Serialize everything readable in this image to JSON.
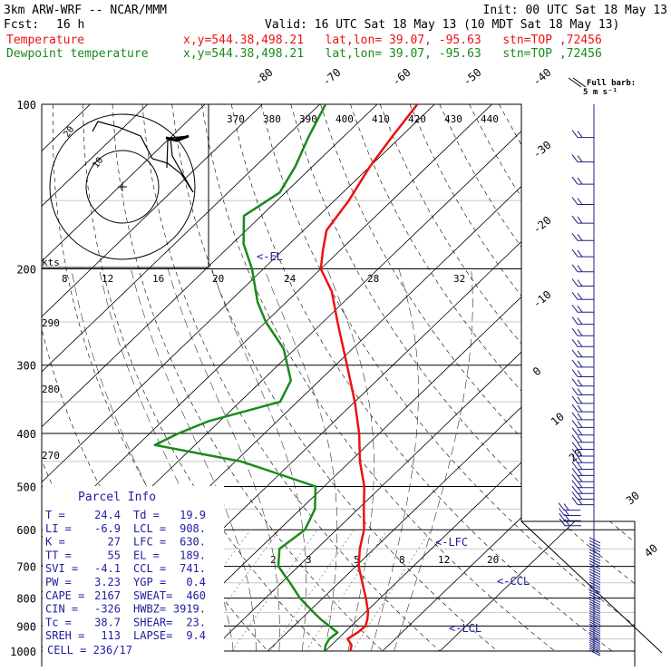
{
  "header": {
    "model": "3km ARW-WRF -- NCAR/MMM",
    "init": "Init: 00 UTC Sat 18 May 13",
    "fcst_label": "Fcst:",
    "fcst_value": "16 h",
    "valid": "Valid: 16 UTC Sat 18 May 13 (10 MDT Sat 18 May 13)",
    "temp_label": "Temperature",
    "dew_label": "Dewpoint temperature",
    "loc_temp": "x,y=544.38,498.21   lat,lon= 39.07, -95.63   stn=TOP ,72456",
    "loc_dew": "x,y=544.38,498.21   lat,lon= 39.07, -95.63   stn=TOP ,72456"
  },
  "colors": {
    "temperature": "#ee1111",
    "dewpoint": "#1a8a1a",
    "barbs": "#202080",
    "parcel": "#2020a0",
    "grid": "#000000"
  },
  "legend": {
    "barb_line1": "Full barb:",
    "barb_line2": "5 m s⁻¹"
  },
  "chart_data": {
    "type": "line",
    "chart_kind": "Skew-T log-P sounding",
    "y_scale": "log pressure",
    "ylim": [
      1000,
      100
    ],
    "xlim_deg_c_at_1000": [
      -30,
      40
    ],
    "pressure_ticks": [
      "100",
      "200",
      "300",
      "400",
      "500",
      "600",
      "700",
      "800",
      "900",
      "1000"
    ],
    "isotherm_labels": [
      "-80",
      "-70",
      "-60",
      "-50",
      "-40",
      "-30",
      "-20",
      "-10",
      "0",
      "10",
      "20",
      "30",
      "40"
    ],
    "theta_labels": [
      "270",
      "280",
      "290"
    ],
    "theta_e_labels": [
      "370",
      "380",
      "390",
      "400",
      "410",
      "420",
      "430",
      "440"
    ],
    "mixing_ratio_labels": [
      "2",
      "3",
      "5",
      "8",
      "12",
      "20"
    ],
    "hodograph": {
      "unit_label": "kts",
      "speed_ticks": [
        "8",
        "12",
        "16",
        "20",
        "24",
        "28",
        "32"
      ],
      "ring_labels": [
        "10",
        "20"
      ]
    },
    "annotations": {
      "el": "<-EL",
      "lfc": "<-LFC",
      "ccl": "<-CCL",
      "lcl": "<-LCL"
    },
    "series": [
      {
        "name": "Temperature",
        "points": [
          [
            1000,
            24.4
          ],
          [
            975,
            23.5
          ],
          [
            950,
            21.7
          ],
          [
            925,
            22.3
          ],
          [
            900,
            22.5
          ],
          [
            875,
            21.6
          ],
          [
            850,
            20.5
          ],
          [
            800,
            17.5
          ],
          [
            750,
            14.1
          ],
          [
            700,
            10.5
          ],
          [
            650,
            7.5
          ],
          [
            600,
            4.8
          ],
          [
            550,
            1.0
          ],
          [
            500,
            -3.0
          ],
          [
            450,
            -8.3
          ],
          [
            400,
            -13.5
          ],
          [
            350,
            -20.0
          ],
          [
            300,
            -28.0
          ],
          [
            250,
            -37.5
          ],
          [
            220,
            -44.0
          ],
          [
            200,
            -50.0
          ],
          [
            185,
            -53.0
          ],
          [
            170,
            -56.0
          ],
          [
            150,
            -57.5
          ],
          [
            130,
            -60.0
          ],
          [
            115,
            -61.5
          ],
          [
            100,
            -63.0
          ]
        ]
      },
      {
        "name": "Dewpoint temperature",
        "points": [
          [
            1000,
            19.9
          ],
          [
            975,
            19.0
          ],
          [
            950,
            18.5
          ],
          [
            925,
            18.8
          ],
          [
            900,
            16.2
          ],
          [
            875,
            13.5
          ],
          [
            850,
            11.0
          ],
          [
            800,
            6.0
          ],
          [
            750,
            1.5
          ],
          [
            700,
            -3.5
          ],
          [
            650,
            -6.5
          ],
          [
            600,
            -5.5
          ],
          [
            550,
            -7.5
          ],
          [
            500,
            -11.5
          ],
          [
            475,
            -20.0
          ],
          [
            450,
            -29.0
          ],
          [
            420,
            -47.0
          ],
          [
            400,
            -45.0
          ],
          [
            380,
            -42.0
          ],
          [
            350,
            -33.0
          ],
          [
            320,
            -35.0
          ],
          [
            280,
            -42.0
          ],
          [
            250,
            -50.0
          ],
          [
            230,
            -55.0
          ],
          [
            200,
            -62.0
          ],
          [
            180,
            -68.0
          ],
          [
            160,
            -73.0
          ],
          [
            145,
            -71.0
          ],
          [
            130,
            -73.0
          ],
          [
            115,
            -76.0
          ],
          [
            100,
            -79.0
          ]
        ]
      }
    ]
  },
  "parcel_info": {
    "title": "Parcel Info",
    "rows": [
      [
        "T  =",
        "24.4",
        "Td =",
        "19.9"
      ],
      [
        "LI =",
        "-6.9",
        "LCL =",
        "908."
      ],
      [
        "K  =",
        "27",
        "LFC =",
        "630."
      ],
      [
        "TT =",
        "55",
        "EL  =",
        "189."
      ],
      [
        "SVI =",
        "-4.1",
        "CCL =",
        "741."
      ],
      [
        "PW =",
        "3.23",
        "YGP =",
        "0.4"
      ],
      [
        "CAPE =",
        "2167",
        "SWEAT=",
        "460"
      ],
      [
        "CIN =",
        "-326",
        "HWBZ=",
        "3919."
      ],
      [
        "Tc =",
        "38.7",
        "SHEAR=",
        "23."
      ],
      [
        "SREH =",
        "113",
        "LAPSE=",
        "9.4"
      ]
    ],
    "cell": "CELL = 236/17"
  }
}
